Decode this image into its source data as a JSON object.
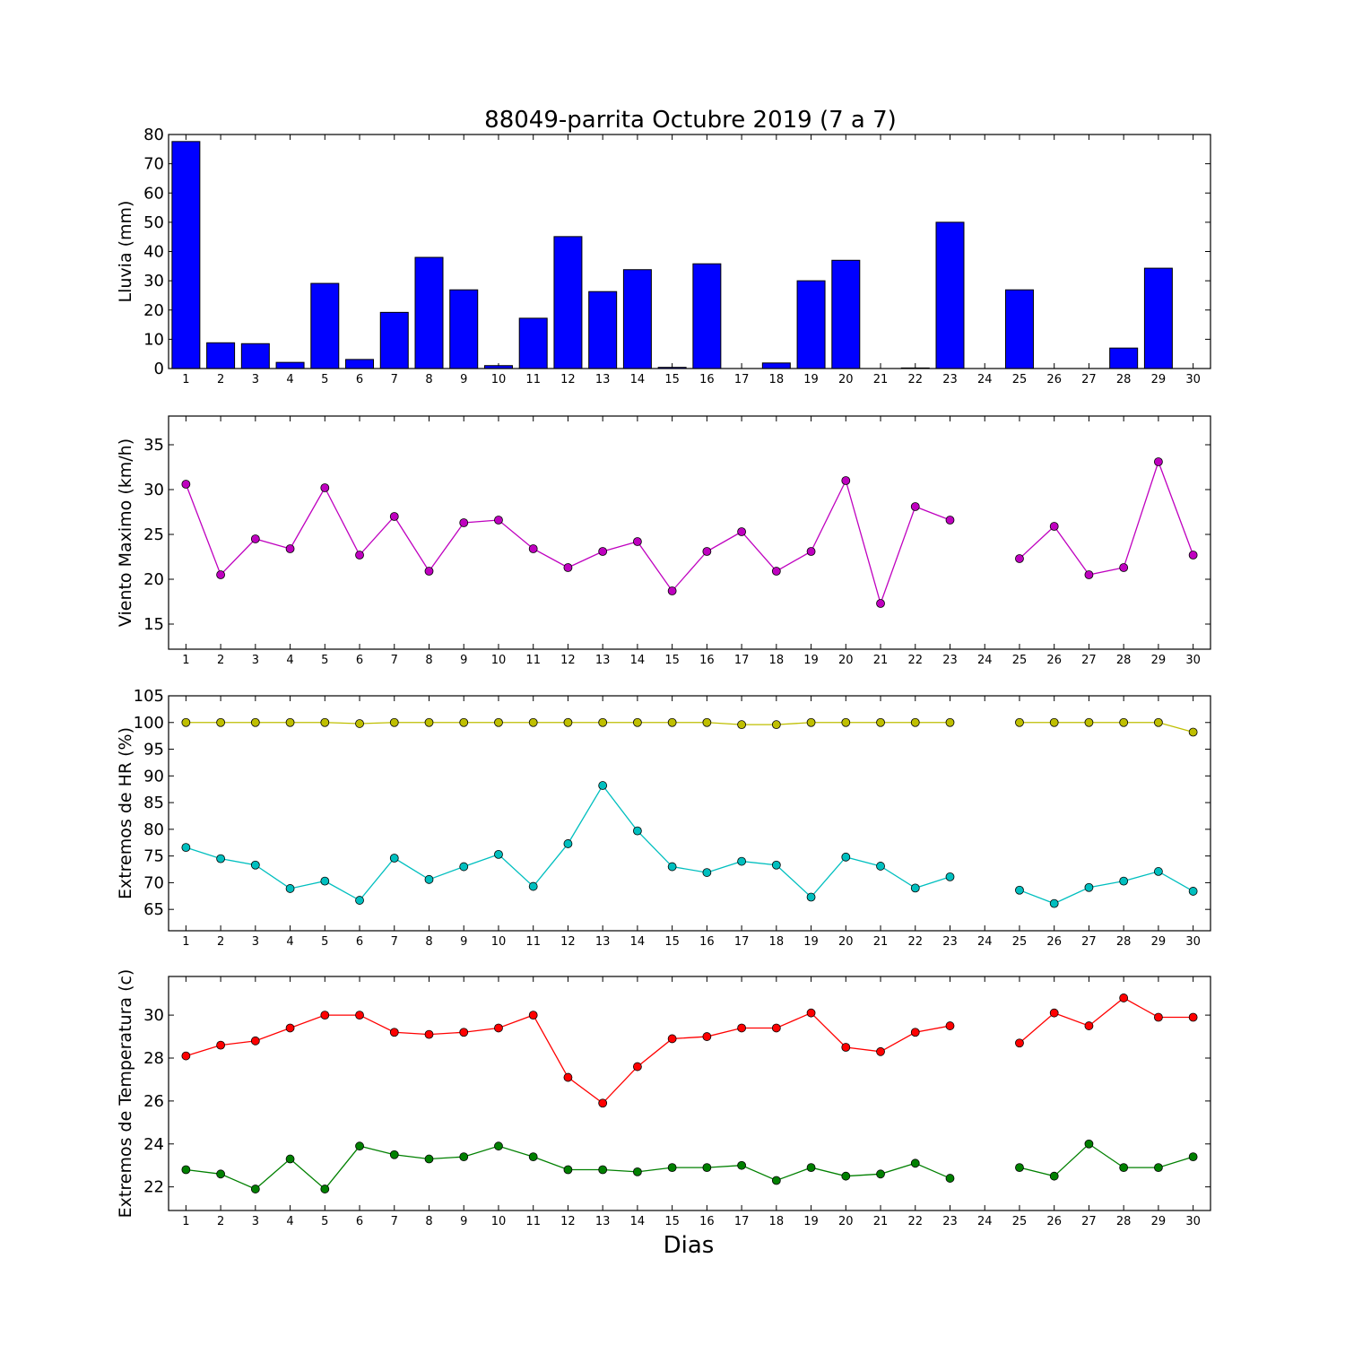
{
  "figure": {
    "title": "88049-parrita Octubre 2019  (7 a 7)",
    "xlabel": "Dias"
  },
  "chart_data": [
    {
      "type": "bar",
      "ylabel": "Lluvia (mm)",
      "ylim": [
        0,
        80
      ],
      "yticks": [
        0,
        10,
        20,
        30,
        40,
        50,
        60,
        70,
        80
      ],
      "categories": [
        1,
        2,
        3,
        4,
        5,
        6,
        7,
        8,
        9,
        10,
        11,
        12,
        13,
        14,
        15,
        16,
        17,
        18,
        19,
        20,
        21,
        22,
        23,
        24,
        25,
        26,
        27,
        28,
        29,
        30
      ],
      "values": [
        77.6,
        8.8,
        8.5,
        2.1,
        29.1,
        3.1,
        19.2,
        38.0,
        26.9,
        1.0,
        17.2,
        45.1,
        26.3,
        33.8,
        0.4,
        35.8,
        0,
        1.9,
        30.0,
        37.0,
        0,
        0.2,
        50.0,
        0,
        26.9,
        0,
        0,
        7.0,
        34.3,
        0
      ],
      "color": "#0000ff"
    },
    {
      "type": "line",
      "ylabel": "Viento Maximo (km/h)",
      "ylim": [
        12.2,
        38.2
      ],
      "yticks": [
        15,
        20,
        25,
        30,
        35
      ],
      "x": [
        1,
        2,
        3,
        4,
        5,
        6,
        7,
        8,
        9,
        10,
        11,
        12,
        13,
        14,
        15,
        16,
        17,
        18,
        19,
        20,
        21,
        22,
        23,
        24,
        25,
        26,
        27,
        28,
        29,
        30
      ],
      "series": [
        {
          "values": [
            30.6,
            20.5,
            24.5,
            23.4,
            30.2,
            22.7,
            27.0,
            20.9,
            26.3,
            26.6,
            23.4,
            21.3,
            23.1,
            24.2,
            18.7,
            23.1,
            25.3,
            20.9,
            23.1,
            31.0,
            17.3,
            28.1,
            26.6,
            null,
            22.3,
            25.9,
            20.5,
            21.3,
            33.1,
            22.7
          ],
          "color": "#bf00bf"
        }
      ]
    },
    {
      "type": "line",
      "ylabel": "Extremos de HR (%)",
      "ylim": [
        61,
        105
      ],
      "yticks": [
        65,
        70,
        75,
        80,
        85,
        90,
        95,
        100,
        105
      ],
      "x": [
        1,
        2,
        3,
        4,
        5,
        6,
        7,
        8,
        9,
        10,
        11,
        12,
        13,
        14,
        15,
        16,
        17,
        18,
        19,
        20,
        21,
        22,
        23,
        24,
        25,
        26,
        27,
        28,
        29,
        30
      ],
      "series": [
        {
          "values": [
            100,
            100,
            100,
            100,
            100,
            99.8,
            100,
            100,
            100,
            100,
            100,
            100,
            100,
            100,
            100,
            100,
            99.6,
            99.6,
            100,
            100,
            100,
            100,
            100,
            null,
            100,
            100,
            100,
            100,
            100,
            98.2
          ],
          "color": "#bfbf00"
        },
        {
          "values": [
            76.6,
            74.5,
            73.3,
            68.9,
            70.3,
            66.7,
            74.6,
            70.6,
            73.0,
            75.3,
            69.3,
            77.3,
            88.2,
            79.7,
            73.0,
            71.9,
            74.0,
            73.3,
            67.3,
            74.8,
            73.1,
            69.0,
            71.1,
            null,
            68.6,
            66.1,
            69.1,
            70.3,
            72.1,
            68.4
          ],
          "color": "#00bfbf"
        }
      ]
    },
    {
      "type": "line",
      "ylabel": "Extremos de Temperatura (c)",
      "ylim": [
        20.9,
        31.8
      ],
      "yticks": [
        22,
        24,
        26,
        28,
        30
      ],
      "x": [
        1,
        2,
        3,
        4,
        5,
        6,
        7,
        8,
        9,
        10,
        11,
        12,
        13,
        14,
        15,
        16,
        17,
        18,
        19,
        20,
        21,
        22,
        23,
        24,
        25,
        26,
        27,
        28,
        29,
        30
      ],
      "series": [
        {
          "values": [
            28.1,
            28.6,
            28.8,
            29.4,
            30.0,
            30.0,
            29.2,
            29.1,
            29.2,
            29.4,
            30.0,
            27.1,
            25.9,
            27.6,
            28.9,
            29.0,
            29.4,
            29.4,
            30.1,
            28.5,
            28.3,
            29.2,
            29.5,
            null,
            28.7,
            30.1,
            29.5,
            30.8,
            29.9,
            29.9
          ],
          "color": "#ff0000"
        },
        {
          "values": [
            22.8,
            22.6,
            21.9,
            23.3,
            21.9,
            23.9,
            23.5,
            23.3,
            23.4,
            23.9,
            23.4,
            22.8,
            22.8,
            22.7,
            22.9,
            22.9,
            23.0,
            22.3,
            22.9,
            22.5,
            22.6,
            23.1,
            22.4,
            null,
            22.9,
            22.5,
            24.0,
            22.9,
            22.9,
            23.4
          ],
          "color": "#008000"
        }
      ]
    }
  ]
}
